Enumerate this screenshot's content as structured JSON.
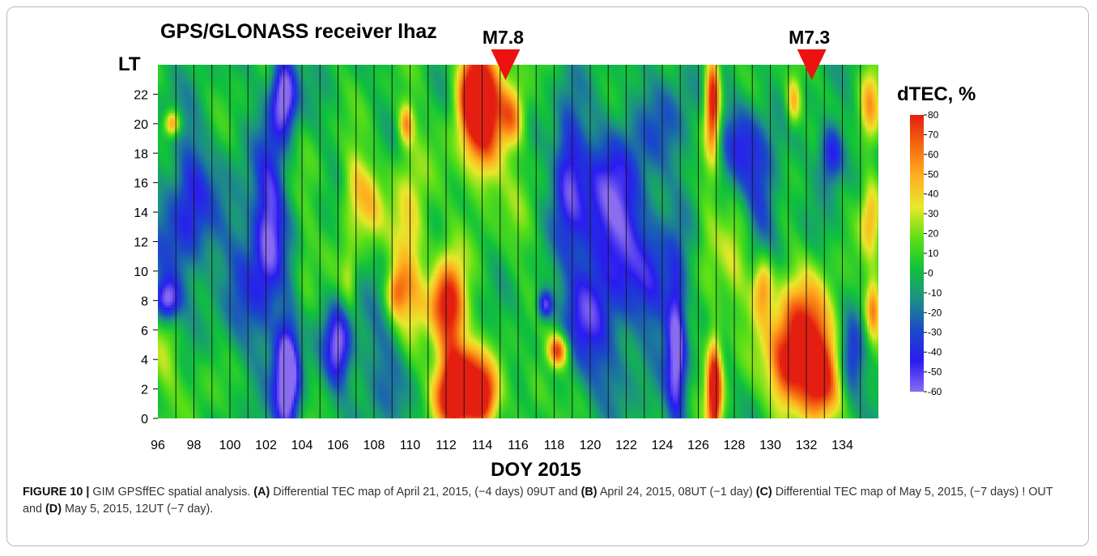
{
  "chart_data": {
    "type": "heatmap",
    "title": "GPS/GLONASS receiver lhaz",
    "xlabel": "DOY 2015",
    "ylabel": "LT",
    "colorbar_label": "dTEC, %",
    "xlim": [
      96,
      136
    ],
    "ylim": [
      0,
      24
    ],
    "x_ticks": [
      96,
      98,
      100,
      102,
      104,
      106,
      108,
      110,
      112,
      114,
      116,
      118,
      120,
      122,
      124,
      126,
      128,
      130,
      132,
      134
    ],
    "y_ticks": [
      0,
      2,
      4,
      6,
      8,
      10,
      12,
      14,
      16,
      18,
      20,
      22
    ],
    "colorbar_ticks": [
      80,
      70,
      60,
      50,
      40,
      30,
      20,
      10,
      0,
      -10,
      -20,
      -30,
      -40,
      -50,
      -60
    ],
    "colorbar_range": [
      -60,
      80
    ],
    "colormap": [
      "#8a6cf0",
      "#2a1cf0",
      "#1a4ac8",
      "#1d8f86",
      "#10c23a",
      "#5ce015",
      "#e8e82a",
      "#ffb020",
      "#f46a10",
      "#e41e10"
    ],
    "day_lines": true,
    "events": [
      {
        "label": "M7.8",
        "doy": 115.3,
        "color": "#ee1111"
      },
      {
        "label": "M7.3",
        "doy": 132.3,
        "color": "#ee1111"
      }
    ],
    "anomalies": [
      {
        "x": 114,
        "y": 21,
        "sx": 0.8,
        "sy": 3.5,
        "v": 95
      },
      {
        "x": 113.2,
        "y": 22,
        "sx": 0.5,
        "sy": 2,
        "v": 40
      },
      {
        "x": 115.7,
        "y": 20.5,
        "sx": 0.5,
        "sy": 1.5,
        "v": 55
      },
      {
        "x": 112.3,
        "y": 6.5,
        "sx": 0.6,
        "sy": 3,
        "v": 80
      },
      {
        "x": 111.6,
        "y": 8,
        "sx": 0.5,
        "sy": 1.5,
        "v": 35
      },
      {
        "x": 112.6,
        "y": 1.5,
        "sx": 0.8,
        "sy": 1.6,
        "v": 95
      },
      {
        "x": 114,
        "y": 1.5,
        "sx": 0.6,
        "sy": 1.6,
        "v": 85
      },
      {
        "x": 113.3,
        "y": 4,
        "sx": 0.5,
        "sy": 1,
        "v": 30
      },
      {
        "x": 110,
        "y": 11,
        "sx": 0.7,
        "sy": 5,
        "v": 45
      },
      {
        "x": 109.2,
        "y": 8.5,
        "sx": 0.4,
        "sy": 1.2,
        "v": 45
      },
      {
        "x": 109.8,
        "y": 20,
        "sx": 0.3,
        "sy": 1,
        "v": 50
      },
      {
        "x": 106.9,
        "y": 15.5,
        "sx": 0.5,
        "sy": 2,
        "v": 40
      },
      {
        "x": 107.8,
        "y": 14.5,
        "sx": 0.5,
        "sy": 2,
        "v": 30
      },
      {
        "x": 106.6,
        "y": 9.5,
        "sx": 0.3,
        "sy": 1.5,
        "v": 25
      },
      {
        "x": 104.2,
        "y": 11,
        "sx": 0.4,
        "sy": 3,
        "v": 15
      },
      {
        "x": 96.8,
        "y": 20,
        "sx": 0.3,
        "sy": 0.6,
        "v": 60
      },
      {
        "x": 96.5,
        "y": 4.5,
        "sx": 0.6,
        "sy": 2,
        "v": 25
      },
      {
        "x": 98.3,
        "y": 2.5,
        "sx": 0.8,
        "sy": 2,
        "v": 10
      },
      {
        "x": 118.2,
        "y": 4.6,
        "sx": 0.4,
        "sy": 0.8,
        "v": 75
      },
      {
        "x": 117,
        "y": 2,
        "sx": 0.6,
        "sy": 1.5,
        "v": 20
      },
      {
        "x": 116,
        "y": 13,
        "sx": 0.6,
        "sy": 4,
        "v": 10
      },
      {
        "x": 126.9,
        "y": 2,
        "sx": 0.3,
        "sy": 2.5,
        "v": 95
      },
      {
        "x": 126.8,
        "y": 21.5,
        "sx": 0.3,
        "sy": 2.5,
        "v": 95
      },
      {
        "x": 126.5,
        "y": 12,
        "sx": 0.4,
        "sy": 4,
        "v": 15
      },
      {
        "x": 128.2,
        "y": 11,
        "sx": 0.8,
        "sy": 4,
        "v": 20
      },
      {
        "x": 129.6,
        "y": 9,
        "sx": 0.4,
        "sy": 1.5,
        "v": 55
      },
      {
        "x": 131.8,
        "y": 5.5,
        "sx": 1.3,
        "sy": 2.8,
        "v": 75
      },
      {
        "x": 132.6,
        "y": 2.5,
        "sx": 0.8,
        "sy": 2,
        "v": 65
      },
      {
        "x": 130.8,
        "y": 3,
        "sx": 0.6,
        "sy": 2,
        "v": 40
      },
      {
        "x": 131.3,
        "y": 21.5,
        "sx": 0.3,
        "sy": 1.2,
        "v": 50
      },
      {
        "x": 135.6,
        "y": 14,
        "sx": 0.4,
        "sy": 2,
        "v": 45
      },
      {
        "x": 135.7,
        "y": 7.5,
        "sx": 0.3,
        "sy": 1.5,
        "v": 55
      },
      {
        "x": 135.5,
        "y": 21,
        "sx": 0.4,
        "sy": 2,
        "v": 45
      },
      {
        "x": 103.2,
        "y": 3,
        "sx": 0.5,
        "sy": 3,
        "v": -85
      },
      {
        "x": 103,
        "y": 22,
        "sx": 0.5,
        "sy": 2,
        "v": -75
      },
      {
        "x": 102.2,
        "y": 13,
        "sx": 0.6,
        "sy": 4,
        "v": -55
      },
      {
        "x": 106,
        "y": 5,
        "sx": 0.5,
        "sy": 2,
        "v": -60
      },
      {
        "x": 96.5,
        "y": 8,
        "sx": 0.5,
        "sy": 1,
        "v": -60
      },
      {
        "x": 97.5,
        "y": 13,
        "sx": 1.4,
        "sy": 4,
        "v": -30
      },
      {
        "x": 101,
        "y": 10,
        "sx": 1,
        "sy": 5,
        "v": -25
      },
      {
        "x": 108.5,
        "y": 3.5,
        "sx": 1.2,
        "sy": 3,
        "v": -25
      },
      {
        "x": 118.8,
        "y": 17,
        "sx": 0.6,
        "sy": 3,
        "v": -50
      },
      {
        "x": 117.5,
        "y": 7.7,
        "sx": 0.3,
        "sy": 0.7,
        "v": -60
      },
      {
        "x": 120.3,
        "y": 12,
        "sx": 1.2,
        "sy": 5,
        "v": -40
      },
      {
        "x": 122,
        "y": 14,
        "sx": 1,
        "sy": 4,
        "v": -40
      },
      {
        "x": 123.7,
        "y": 9,
        "sx": 0.8,
        "sy": 3,
        "v": -35
      },
      {
        "x": 124.8,
        "y": 5,
        "sx": 0.4,
        "sy": 4,
        "v": -65
      },
      {
        "x": 119.5,
        "y": 7,
        "sx": 1,
        "sy": 2,
        "v": -25
      },
      {
        "x": 121.3,
        "y": 3,
        "sx": 1.2,
        "sy": 2,
        "v": -20
      },
      {
        "x": 128.3,
        "y": 19,
        "sx": 0.8,
        "sy": 2,
        "v": -40
      },
      {
        "x": 129.5,
        "y": 15,
        "sx": 0.7,
        "sy": 3,
        "v": -40
      },
      {
        "x": 133.4,
        "y": 18,
        "sx": 0.5,
        "sy": 1.5,
        "v": -55
      },
      {
        "x": 134.5,
        "y": 4,
        "sx": 0.5,
        "sy": 2,
        "v": -45
      },
      {
        "x": 124.5,
        "y": 20,
        "sx": 1.3,
        "sy": 3,
        "v": -20
      },
      {
        "x": 97.8,
        "y": 16,
        "sx": 0.6,
        "sy": 3,
        "v": -20
      }
    ]
  },
  "caption": {
    "prefix": "FIGURE 10 |",
    "text_1": " GIM GPSffEC spatial analysis. ",
    "a_label": "(A)",
    "text_2": " Differential TEC map of April 21, 2015, (−4 days) 09UT and ",
    "b_label": "(B)",
    "text_3": " April 24, 2015, 08UT (−1 day) ",
    "c_label": "(C)",
    "text_4": " Differential TEC map of May 5, 2015, (−7 days) ! OUT and ",
    "d_label": "(D)",
    "text_5": " May 5, 2015, 12UT (−7 day)."
  }
}
